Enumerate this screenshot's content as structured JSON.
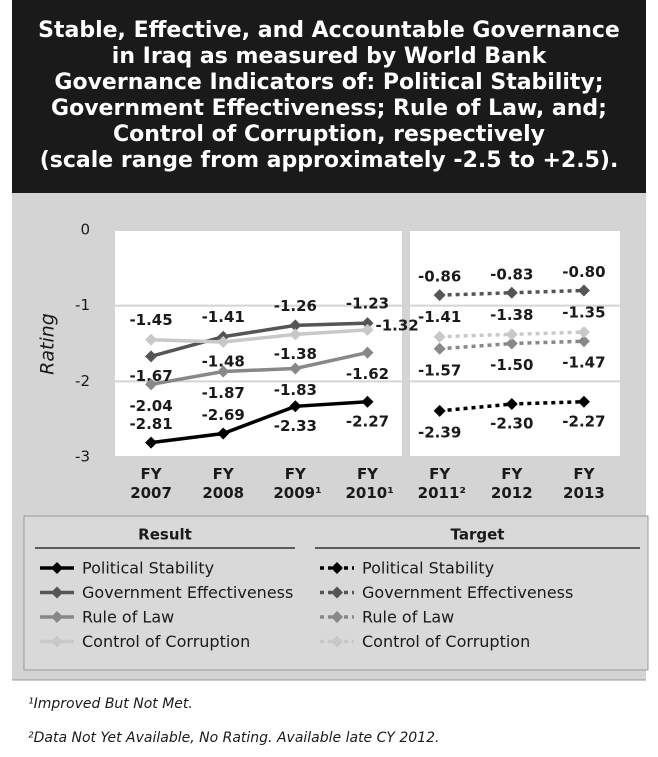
{
  "chart_data": {
    "type": "line",
    "title": "Stable, Effective, and Accountable Governance\nin Iraq as measured by World Bank\nGovernance Indicators of: Political Stability;\nGovernment Effectiveness; Rule of Law, and;\nControl of Corruption, respectively\n(scale range from approximately -2.5 to +2.5).",
    "y_label": "Rating",
    "categories": [
      "FY 2007",
      "FY 2008",
      "FY 2009¹",
      "FY 2010¹",
      "FY 2011²",
      "FY 2012",
      "FY 2013"
    ],
    "ylim": [
      -3,
      0
    ],
    "yticks": [
      0,
      -1,
      -2,
      -3
    ],
    "grid": true,
    "legend_groups": [
      "Result",
      "Target"
    ],
    "series": [
      {
        "name": "Political Stability",
        "group": 0,
        "dashed": false,
        "color": "#000000",
        "values": [
          -2.81,
          -2.69,
          -2.33,
          -2.27,
          null,
          null,
          null
        ],
        "value_labels": [
          "-2.81",
          "-2.69",
          "-2.33",
          "-2.27",
          null,
          null,
          null
        ]
      },
      {
        "name": "Government Effectiveness",
        "group": 0,
        "dashed": false,
        "color": "#555555",
        "values": [
          -1.67,
          -1.41,
          -1.26,
          -1.23,
          null,
          null,
          null
        ],
        "value_labels": [
          "-1.67",
          "-1.41",
          "-1.26",
          "-1.23",
          null,
          null,
          null
        ]
      },
      {
        "name": "Rule of Law",
        "group": 0,
        "dashed": false,
        "color": "#888888",
        "values": [
          -2.04,
          -1.87,
          -1.83,
          -1.62,
          null,
          null,
          null
        ],
        "value_labels": [
          "-2.04",
          "-1.87",
          "-1.83",
          "-1.62",
          null,
          null,
          null
        ]
      },
      {
        "name": "Control of Corruption",
        "group": 0,
        "dashed": false,
        "color": "#c8c8c8",
        "values": [
          -1.45,
          -1.48,
          -1.38,
          -1.32,
          null,
          null,
          null
        ],
        "value_labels": [
          "-1.45",
          "-1.48",
          "-1.38",
          "-1.32",
          null,
          null,
          null
        ]
      },
      {
        "name": "Political Stability",
        "group": 1,
        "dashed": true,
        "color": "#000000",
        "values": [
          null,
          null,
          null,
          null,
          -2.39,
          -2.3,
          -2.27
        ],
        "value_labels": [
          null,
          null,
          null,
          null,
          "-2.39",
          "-2.30",
          "-2.27"
        ]
      },
      {
        "name": "Government Effectiveness",
        "group": 1,
        "dashed": true,
        "color": "#555555",
        "values": [
          null,
          null,
          null,
          null,
          -0.86,
          -0.83,
          -0.8
        ],
        "value_labels": [
          null,
          null,
          null,
          null,
          "-0.86",
          "-0.83",
          "-0.80"
        ]
      },
      {
        "name": "Rule of Law",
        "group": 1,
        "dashed": true,
        "color": "#888888",
        "values": [
          null,
          null,
          null,
          null,
          -1.57,
          -1.5,
          -1.47
        ],
        "value_labels": [
          null,
          null,
          null,
          null,
          "-1.57",
          "-1.50",
          "-1.47"
        ]
      },
      {
        "name": "Control of Corruption",
        "group": 1,
        "dashed": true,
        "color": "#c8c8c8",
        "values": [
          null,
          null,
          null,
          null,
          -1.41,
          -1.38,
          -1.35
        ],
        "value_labels": [
          null,
          null,
          null,
          null,
          "-1.41",
          "-1.38",
          "-1.35"
        ]
      }
    ],
    "footnotes": [
      "¹Improved But Not Met.",
      "²Data Not Yet Available, No Rating.  Available late CY 2012."
    ]
  }
}
